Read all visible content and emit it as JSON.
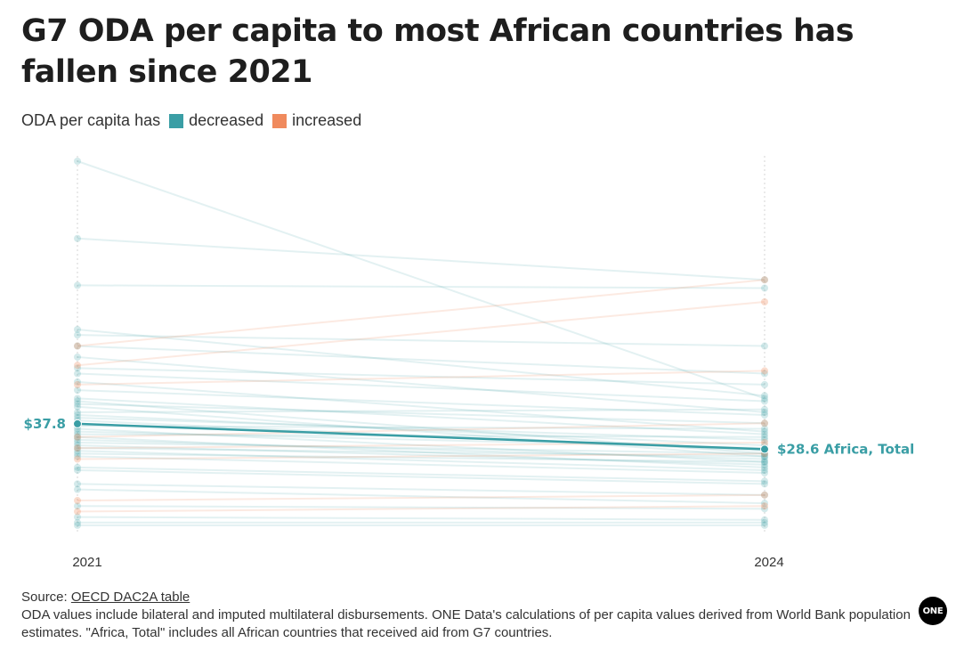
{
  "title": "G7 ODA per capita to most African countries has fallen since 2021",
  "legend": {
    "lead": "ODA per capita has",
    "items": [
      {
        "label": "decreased",
        "color": "#3a9ea5"
      },
      {
        "label": "increased",
        "color": "#f08a5d"
      }
    ]
  },
  "footer": {
    "source_prefix": "Source: ",
    "source_link": "OECD DAC2A table",
    "note": "ODA values include bilateral and imputed multilateral disbursements. ONE Data's calculations of per capita values derived from World Bank population estimates. \"Africa, Total\" includes all African countries that received aid from G7 countries."
  },
  "logo": "ONE",
  "chart_data": {
    "type": "line",
    "subtype": "slope",
    "x": [
      "2021",
      "2024"
    ],
    "ylim": [
      0,
      133
    ],
    "colors": {
      "decreased": "#3a9ea5",
      "increased": "#f08a5d",
      "highlight": "#3a9ea5"
    },
    "highlight": {
      "name": "Africa, Total",
      "values": [
        37.8,
        28.6
      ],
      "start_label": "$37.8",
      "end_label": "$28.6 Africa, Total"
    },
    "series": [
      {
        "values": [
          133.0,
          47.0
        ]
      },
      {
        "values": [
          105.0,
          90.0
        ]
      },
      {
        "values": [
          88.0,
          87.0
        ]
      },
      {
        "values": [
          72.0,
          48.0
        ]
      },
      {
        "values": [
          70.0,
          66.0
        ]
      },
      {
        "values": [
          66.0,
          56.0
        ]
      },
      {
        "values": [
          62.0,
          42.0
        ]
      },
      {
        "values": [
          58.0,
          52.0
        ]
      },
      {
        "values": [
          56.0,
          46.0
        ]
      },
      {
        "values": [
          53.0,
          35.0
        ]
      },
      {
        "values": [
          50.0,
          41.0
        ]
      },
      {
        "values": [
          47.0,
          34.0
        ]
      },
      {
        "values": [
          46.0,
          27.0
        ]
      },
      {
        "values": [
          45.0,
          38.0
        ]
      },
      {
        "values": [
          44.0,
          26.0
        ]
      },
      {
        "values": [
          42.0,
          43.0
        ]
      },
      {
        "values": [
          41.0,
          30.0
        ]
      },
      {
        "values": [
          40.0,
          32.0
        ]
      },
      {
        "values": [
          39.0,
          28.0
        ]
      },
      {
        "values": [
          37.0,
          36.0
        ]
      },
      {
        "values": [
          36.0,
          24.0
        ]
      },
      {
        "values": [
          35.0,
          29.0
        ]
      },
      {
        "values": [
          34.0,
          33.0
        ]
      },
      {
        "values": [
          33.0,
          22.0
        ]
      },
      {
        "values": [
          32.0,
          25.0
        ]
      },
      {
        "values": [
          31.0,
          27.0
        ]
      },
      {
        "values": [
          30.0,
          23.0
        ]
      },
      {
        "values": [
          29.0,
          26.0
        ]
      },
      {
        "values": [
          28.0,
          21.0
        ]
      },
      {
        "values": [
          27.0,
          24.0
        ]
      },
      {
        "values": [
          26.0,
          20.0
        ]
      },
      {
        "values": [
          22.0,
          17.0
        ]
      },
      {
        "values": [
          21.0,
          16.0
        ]
      },
      {
        "values": [
          16.0,
          12.0
        ]
      },
      {
        "values": [
          14.0,
          9.0
        ]
      },
      {
        "values": [
          8.0,
          7.0
        ]
      },
      {
        "values": [
          4.0,
          3.0
        ]
      },
      {
        "values": [
          2.0,
          2.0
        ]
      },
      {
        "values": [
          1.0,
          1.0
        ]
      },
      {
        "values": [
          66.0,
          90.0
        ],
        "direction": "increased"
      },
      {
        "values": [
          59.0,
          82.0
        ],
        "direction": "increased"
      },
      {
        "values": [
          52.0,
          57.0
        ],
        "direction": "increased"
      },
      {
        "values": [
          33.0,
          38.0
        ],
        "direction": "increased"
      },
      {
        "values": [
          29.0,
          31.0
        ],
        "direction": "increased"
      },
      {
        "values": [
          25.0,
          27.0
        ],
        "direction": "increased"
      },
      {
        "values": [
          10.0,
          12.0
        ],
        "direction": "increased"
      },
      {
        "values": [
          6.0,
          8.0
        ],
        "direction": "increased"
      }
    ]
  }
}
